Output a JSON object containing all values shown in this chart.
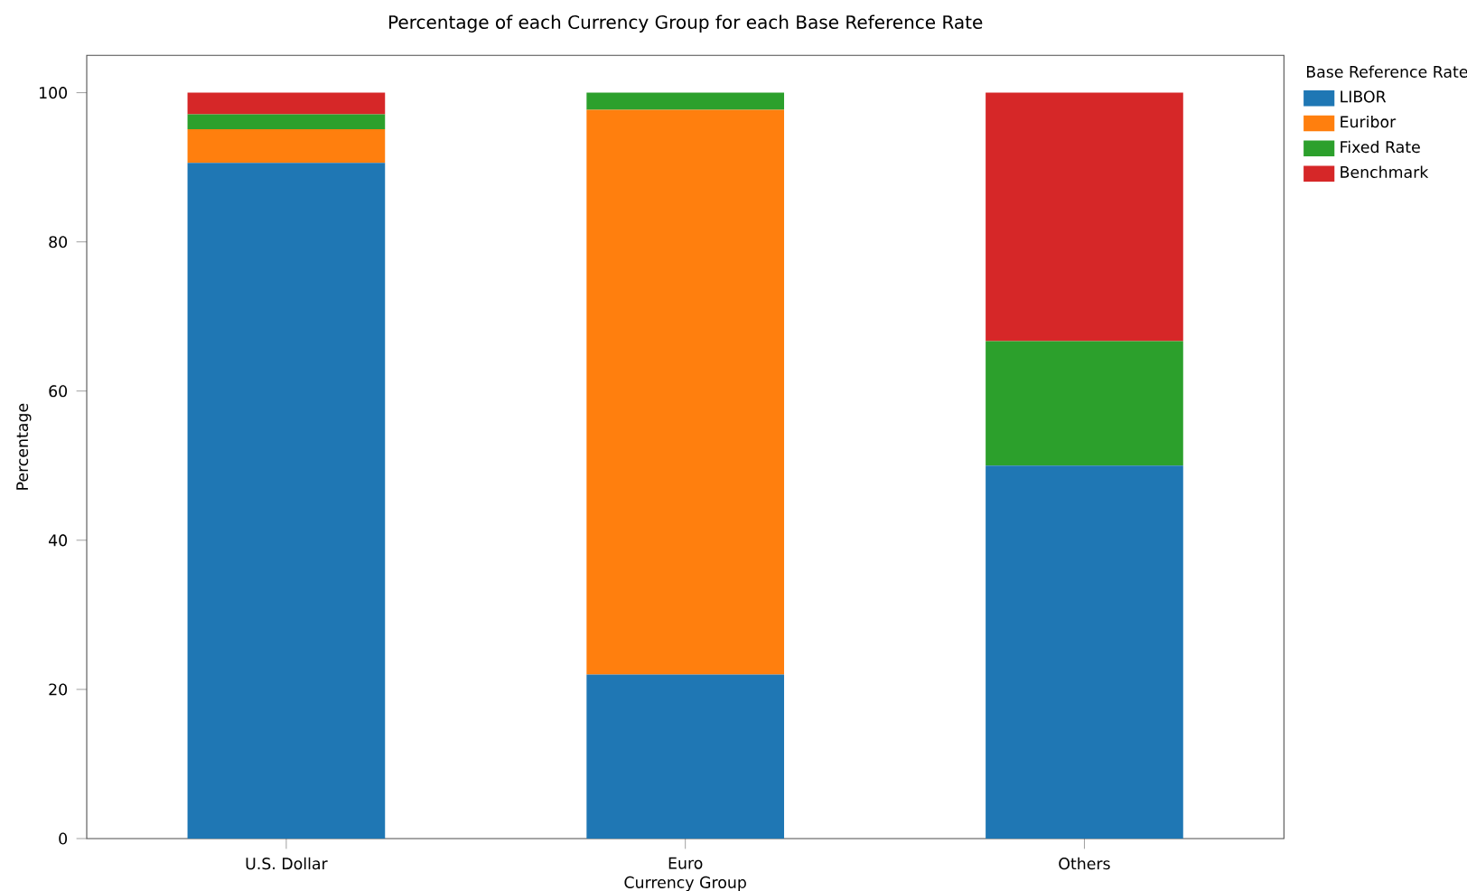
{
  "chart_data": {
    "type": "bar",
    "stacked": true,
    "title": "Percentage of each Currency Group for each Base Reference Rate",
    "xlabel": "Currency Group",
    "ylabel": "Percentage",
    "legend_title": "Base Reference Rate",
    "legend": "right",
    "categories": [
      "U.S. Dollar",
      "Euro",
      "Others"
    ],
    "series": [
      {
        "name": "LIBOR",
        "color": "#1f77b4",
        "values": [
          90.6,
          22.0,
          50.0
        ]
      },
      {
        "name": "Euribor",
        "color": "#ff7f0e",
        "values": [
          4.5,
          75.7,
          0
        ]
      },
      {
        "name": "Fixed Rate",
        "color": "#2ca02c",
        "values": [
          2.0,
          2.3,
          16.7
        ]
      },
      {
        "name": "Benchmark",
        "color": "#d62728",
        "values": [
          2.9,
          0,
          33.3
        ]
      }
    ],
    "ylim": [
      0,
      105
    ],
    "yticks": [
      0,
      20,
      40,
      60,
      80,
      100
    ]
  }
}
